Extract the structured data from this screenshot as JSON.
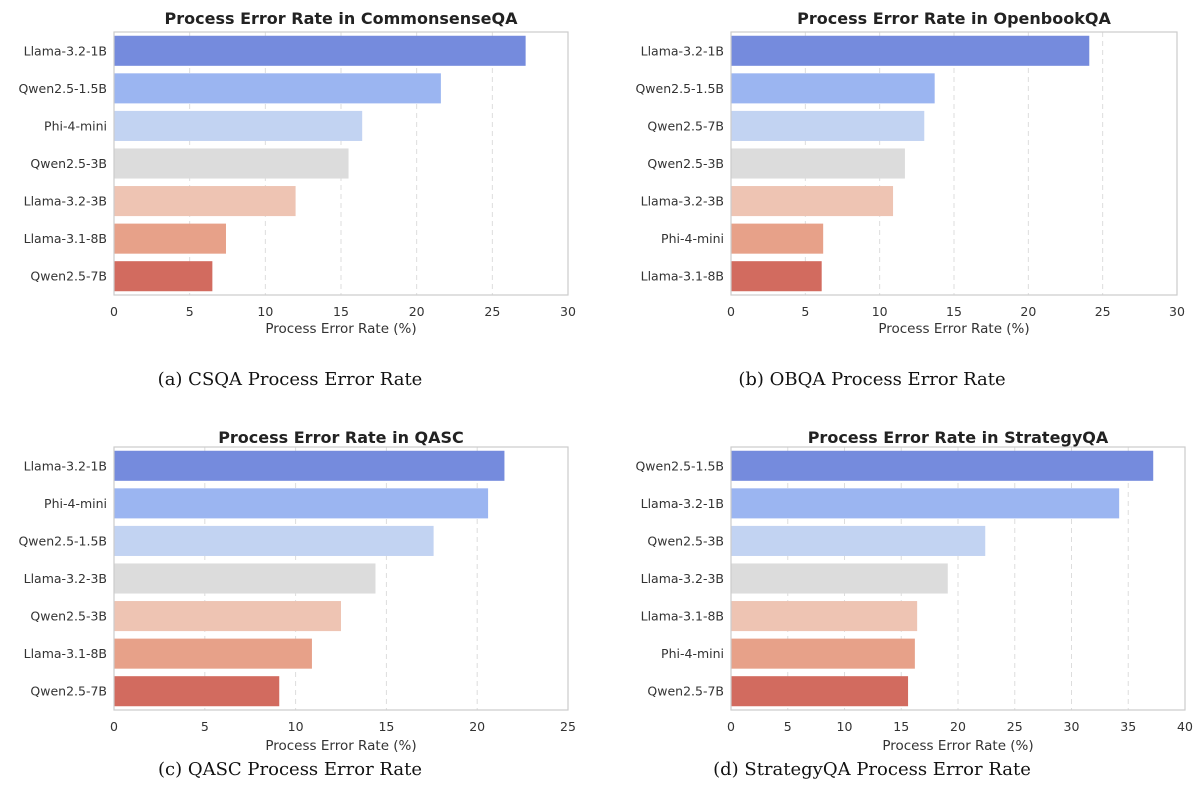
{
  "chart_data": [
    {
      "type": "bar",
      "orientation": "horizontal",
      "title": "Process Error Rate in CommonsenseQA",
      "xlabel": "Process Error Rate (%)",
      "ylabel": "",
      "xlim": [
        0,
        30
      ],
      "xticks": [
        0,
        5,
        10,
        15,
        20,
        25,
        30
      ],
      "grid": "vertical-dashed",
      "categories": [
        "Llama-3.2-1B",
        "Qwen2.5-1.5B",
        "Phi-4-mini",
        "Qwen2.5-3B",
        "Llama-3.2-3B",
        "Llama-3.1-8B",
        "Qwen2.5-7B"
      ],
      "values": [
        27.2,
        21.6,
        16.4,
        15.5,
        12.0,
        7.4,
        6.5
      ],
      "caption": "(a) CSQA Process Error Rate"
    },
    {
      "type": "bar",
      "orientation": "horizontal",
      "title": "Process Error Rate in OpenbookQA",
      "xlabel": "Process Error Rate (%)",
      "ylabel": "",
      "xlim": [
        0,
        30
      ],
      "xticks": [
        0,
        5,
        10,
        15,
        20,
        25,
        30
      ],
      "grid": "vertical-dashed",
      "categories": [
        "Llama-3.2-1B",
        "Qwen2.5-1.5B",
        "Qwen2.5-7B",
        "Qwen2.5-3B",
        "Llama-3.2-3B",
        "Phi-4-mini",
        "Llama-3.1-8B"
      ],
      "values": [
        24.1,
        13.7,
        13.0,
        11.7,
        10.9,
        6.2,
        6.1
      ],
      "caption": "(b) OBQA Process Error Rate"
    },
    {
      "type": "bar",
      "orientation": "horizontal",
      "title": "Process Error Rate in QASC",
      "xlabel": "Process Error Rate (%)",
      "ylabel": "",
      "xlim": [
        0,
        25
      ],
      "xticks": [
        0,
        5,
        10,
        15,
        20,
        25
      ],
      "grid": "vertical-dashed",
      "categories": [
        "Llama-3.2-1B",
        "Phi-4-mini",
        "Qwen2.5-1.5B",
        "Llama-3.2-3B",
        "Qwen2.5-3B",
        "Llama-3.1-8B",
        "Qwen2.5-7B"
      ],
      "values": [
        21.5,
        20.6,
        17.6,
        14.4,
        12.5,
        10.9,
        9.1
      ],
      "caption": "(c) QASC Process Error Rate"
    },
    {
      "type": "bar",
      "orientation": "horizontal",
      "title": "Process Error Rate in StrategyQA",
      "xlabel": "Process Error Rate (%)",
      "ylabel": "",
      "xlim": [
        0,
        40
      ],
      "xticks": [
        0,
        5,
        10,
        15,
        20,
        25,
        30,
        35,
        40
      ],
      "grid": "vertical-dashed",
      "categories": [
        "Qwen2.5-1.5B",
        "Llama-3.2-1B",
        "Qwen2.5-3B",
        "Llama-3.2-3B",
        "Llama-3.1-8B",
        "Phi-4-mini",
        "Qwen2.5-7B"
      ],
      "values": [
        37.2,
        34.2,
        22.4,
        19.1,
        16.4,
        16.2,
        15.6
      ],
      "caption": "(d) StrategyQA Process Error Rate"
    }
  ],
  "palette": [
    "#758bdd",
    "#9bb5f1",
    "#c2d3f2",
    "#dcdcdc",
    "#eec4b3",
    "#e7a189",
    "#d26b5f"
  ],
  "style": {
    "axes_border": "#cccccc",
    "grid_color": "#dddddd"
  }
}
